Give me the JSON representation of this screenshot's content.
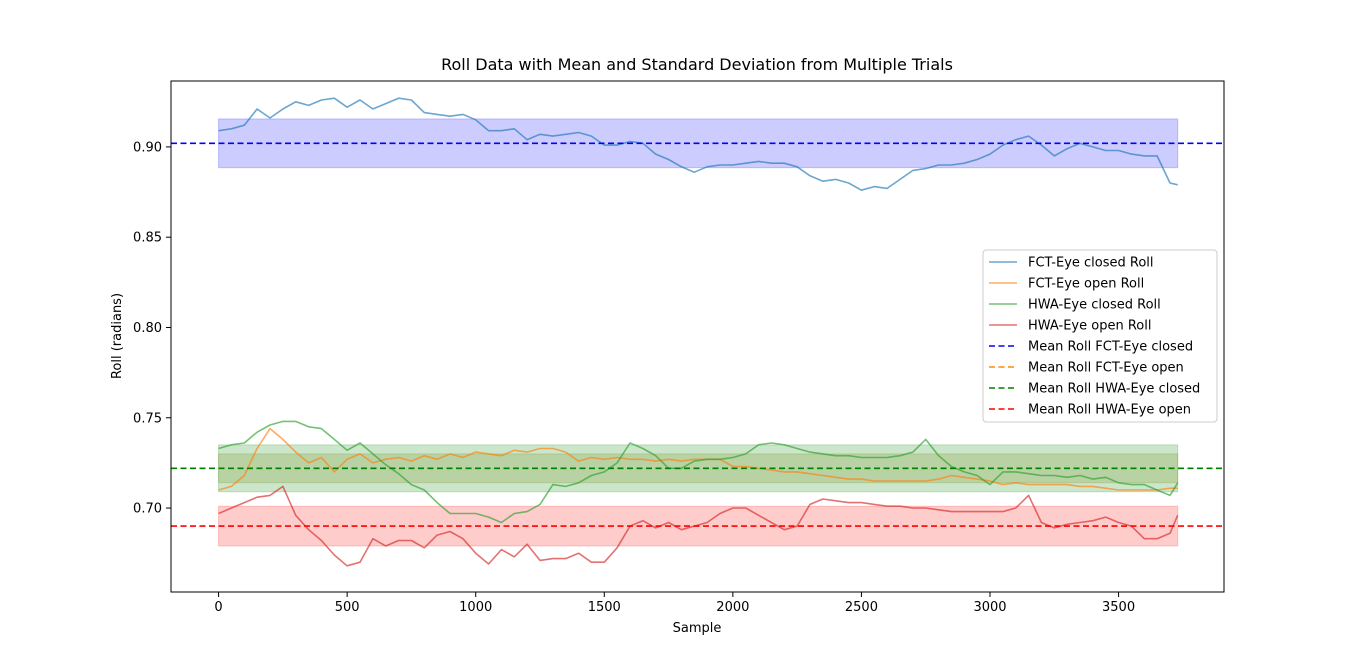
{
  "chart_data": {
    "type": "line",
    "title": "Roll Data with Mean and Standard Deviation from Multiple Trials",
    "xlabel": "Sample",
    "ylabel": "Roll (radians)",
    "xlim": [
      -185,
      3910
    ],
    "ylim": [
      0.6535,
      0.9365
    ],
    "xticks": [
      0,
      500,
      1000,
      1500,
      2000,
      2500,
      3000,
      3500
    ],
    "xtick_labels": [
      "0",
      "500",
      "1000",
      "1500",
      "2000",
      "2500",
      "3000",
      "3500"
    ],
    "yticks": [
      0.7,
      0.75,
      0.8,
      0.85,
      0.9
    ],
    "ytick_labels": [
      "0.70",
      "0.75",
      "0.80",
      "0.85",
      "0.90"
    ],
    "grid": false,
    "legend_position": "center-right",
    "series": [
      {
        "name": "FCT-Eye closed Roll",
        "color": "#1f77b4",
        "x": [
          0,
          50,
          100,
          150,
          200,
          250,
          300,
          350,
          400,
          450,
          500,
          550,
          600,
          650,
          700,
          750,
          800,
          850,
          900,
          950,
          1000,
          1050,
          1100,
          1150,
          1200,
          1250,
          1300,
          1350,
          1400,
          1450,
          1500,
          1550,
          1600,
          1650,
          1700,
          1750,
          1800,
          1850,
          1900,
          1950,
          2000,
          2050,
          2100,
          2150,
          2200,
          2250,
          2300,
          2350,
          2400,
          2450,
          2500,
          2550,
          2600,
          2650,
          2700,
          2750,
          2800,
          2850,
          2900,
          2950,
          3000,
          3050,
          3100,
          3150,
          3200,
          3250,
          3300,
          3350,
          3400,
          3450,
          3500,
          3550,
          3600,
          3650,
          3700,
          3730
        ],
        "y": [
          0.909,
          0.91,
          0.912,
          0.921,
          0.916,
          0.921,
          0.925,
          0.923,
          0.926,
          0.927,
          0.922,
          0.926,
          0.921,
          0.924,
          0.927,
          0.926,
          0.919,
          0.918,
          0.917,
          0.918,
          0.915,
          0.909,
          0.909,
          0.91,
          0.904,
          0.907,
          0.906,
          0.907,
          0.908,
          0.906,
          0.901,
          0.901,
          0.903,
          0.902,
          0.896,
          0.893,
          0.889,
          0.886,
          0.889,
          0.89,
          0.89,
          0.891,
          0.892,
          0.891,
          0.891,
          0.889,
          0.884,
          0.881,
          0.882,
          0.88,
          0.876,
          0.878,
          0.877,
          0.882,
          0.887,
          0.888,
          0.89,
          0.89,
          0.891,
          0.893,
          0.896,
          0.901,
          0.904,
          0.906,
          0.901,
          0.895,
          0.899,
          0.902,
          0.9,
          0.898,
          0.898,
          0.896,
          0.895,
          0.895,
          0.88,
          0.879
        ],
        "mean": 0.902,
        "std": 0.0135,
        "band_color": "#0000ff",
        "mean_line_color": "#0000ff"
      },
      {
        "name": "FCT-Eye open Roll",
        "color": "#ff7f0e",
        "x": [
          0,
          50,
          100,
          150,
          200,
          250,
          300,
          350,
          400,
          450,
          500,
          550,
          600,
          650,
          700,
          750,
          800,
          850,
          900,
          950,
          1000,
          1050,
          1100,
          1150,
          1200,
          1250,
          1300,
          1350,
          1400,
          1450,
          1500,
          1550,
          1600,
          1650,
          1700,
          1750,
          1800,
          1850,
          1900,
          1950,
          2000,
          2050,
          2100,
          2150,
          2200,
          2250,
          2300,
          2350,
          2400,
          2450,
          2500,
          2550,
          2600,
          2650,
          2700,
          2750,
          2800,
          2850,
          2900,
          2950,
          3000,
          3050,
          3100,
          3150,
          3200,
          3250,
          3300,
          3350,
          3400,
          3450,
          3500,
          3550,
          3600,
          3650,
          3700,
          3730
        ],
        "y": [
          0.71,
          0.712,
          0.718,
          0.733,
          0.744,
          0.738,
          0.731,
          0.725,
          0.728,
          0.72,
          0.727,
          0.73,
          0.725,
          0.727,
          0.728,
          0.726,
          0.729,
          0.727,
          0.73,
          0.728,
          0.731,
          0.73,
          0.729,
          0.732,
          0.731,
          0.733,
          0.733,
          0.731,
          0.726,
          0.728,
          0.727,
          0.728,
          0.727,
          0.727,
          0.726,
          0.727,
          0.726,
          0.727,
          0.727,
          0.727,
          0.723,
          0.723,
          0.722,
          0.721,
          0.72,
          0.72,
          0.719,
          0.718,
          0.717,
          0.716,
          0.716,
          0.715,
          0.715,
          0.715,
          0.715,
          0.715,
          0.716,
          0.718,
          0.717,
          0.716,
          0.715,
          0.713,
          0.714,
          0.713,
          0.713,
          0.713,
          0.713,
          0.712,
          0.712,
          0.711,
          0.71,
          0.71,
          0.71,
          0.71,
          0.711,
          0.711
        ],
        "mean": 0.722,
        "std": 0.008,
        "band_color": "#808000",
        "mean_line_color": "#ff8c00"
      },
      {
        "name": "HWA-Eye closed Roll",
        "color": "#2ca02c",
        "x": [
          0,
          50,
          100,
          150,
          200,
          250,
          300,
          350,
          400,
          450,
          500,
          550,
          600,
          650,
          700,
          750,
          800,
          850,
          900,
          950,
          1000,
          1050,
          1100,
          1150,
          1200,
          1250,
          1300,
          1350,
          1400,
          1450,
          1500,
          1550,
          1600,
          1650,
          1700,
          1750,
          1800,
          1850,
          1900,
          1950,
          2000,
          2050,
          2100,
          2150,
          2200,
          2250,
          2300,
          2350,
          2400,
          2450,
          2500,
          2550,
          2600,
          2650,
          2700,
          2750,
          2800,
          2850,
          2900,
          2950,
          3000,
          3050,
          3100,
          3150,
          3200,
          3250,
          3300,
          3350,
          3400,
          3450,
          3500,
          3550,
          3600,
          3650,
          3700,
          3730
        ],
        "y": [
          0.733,
          0.735,
          0.736,
          0.742,
          0.746,
          0.748,
          0.748,
          0.745,
          0.744,
          0.738,
          0.732,
          0.736,
          0.73,
          0.724,
          0.719,
          0.713,
          0.71,
          0.703,
          0.697,
          0.697,
          0.697,
          0.695,
          0.692,
          0.697,
          0.698,
          0.702,
          0.713,
          0.712,
          0.714,
          0.718,
          0.72,
          0.725,
          0.736,
          0.733,
          0.729,
          0.722,
          0.722,
          0.726,
          0.727,
          0.727,
          0.728,
          0.73,
          0.735,
          0.736,
          0.735,
          0.733,
          0.731,
          0.73,
          0.729,
          0.729,
          0.728,
          0.728,
          0.728,
          0.729,
          0.731,
          0.738,
          0.729,
          0.723,
          0.72,
          0.718,
          0.713,
          0.72,
          0.72,
          0.719,
          0.718,
          0.718,
          0.717,
          0.718,
          0.716,
          0.717,
          0.714,
          0.713,
          0.713,
          0.71,
          0.707,
          0.714
        ],
        "mean": 0.722,
        "std": 0.013,
        "band_color": "#008000",
        "mean_line_color": "#008000"
      },
      {
        "name": "HWA-Eye open Roll",
        "color": "#d62728",
        "x": [
          0,
          50,
          100,
          150,
          200,
          250,
          300,
          350,
          400,
          450,
          500,
          550,
          600,
          650,
          700,
          750,
          800,
          850,
          900,
          950,
          1000,
          1050,
          1100,
          1150,
          1200,
          1250,
          1300,
          1350,
          1400,
          1450,
          1500,
          1550,
          1600,
          1650,
          1700,
          1750,
          1800,
          1850,
          1900,
          1950,
          2000,
          2050,
          2100,
          2150,
          2200,
          2250,
          2300,
          2350,
          2400,
          2450,
          2500,
          2550,
          2600,
          2650,
          2700,
          2750,
          2800,
          2850,
          2900,
          2950,
          3000,
          3050,
          3100,
          3150,
          3200,
          3250,
          3300,
          3350,
          3400,
          3450,
          3500,
          3550,
          3600,
          3650,
          3700,
          3730
        ],
        "y": [
          0.697,
          0.7,
          0.703,
          0.706,
          0.707,
          0.712,
          0.696,
          0.688,
          0.682,
          0.674,
          0.668,
          0.67,
          0.683,
          0.679,
          0.682,
          0.682,
          0.678,
          0.685,
          0.687,
          0.683,
          0.675,
          0.669,
          0.677,
          0.673,
          0.68,
          0.671,
          0.672,
          0.672,
          0.675,
          0.67,
          0.67,
          0.678,
          0.69,
          0.693,
          0.689,
          0.692,
          0.688,
          0.69,
          0.692,
          0.697,
          0.7,
          0.7,
          0.696,
          0.692,
          0.688,
          0.69,
          0.702,
          0.705,
          0.704,
          0.703,
          0.703,
          0.702,
          0.701,
          0.701,
          0.7,
          0.7,
          0.699,
          0.698,
          0.698,
          0.698,
          0.698,
          0.698,
          0.7,
          0.707,
          0.692,
          0.689,
          0.691,
          0.692,
          0.693,
          0.695,
          0.692,
          0.69,
          0.683,
          0.683,
          0.686,
          0.696
        ],
        "mean": 0.69,
        "std": 0.011,
        "band_color": "#ff0000",
        "mean_line_color": "#ff0000"
      }
    ],
    "mean_lines": [
      {
        "name": "Mean Roll FCT-Eye closed",
        "y": 0.902,
        "color": "#0000ff"
      },
      {
        "name": "Mean Roll FCT-Eye open",
        "y": 0.722,
        "color": "#ff8c00"
      },
      {
        "name": "Mean Roll HWA-Eye closed",
        "y": 0.722,
        "color": "#008000"
      },
      {
        "name": "Mean Roll HWA-Eye open",
        "y": 0.69,
        "color": "#ff0000"
      }
    ],
    "band_x_range": [
      0,
      3730
    ]
  }
}
